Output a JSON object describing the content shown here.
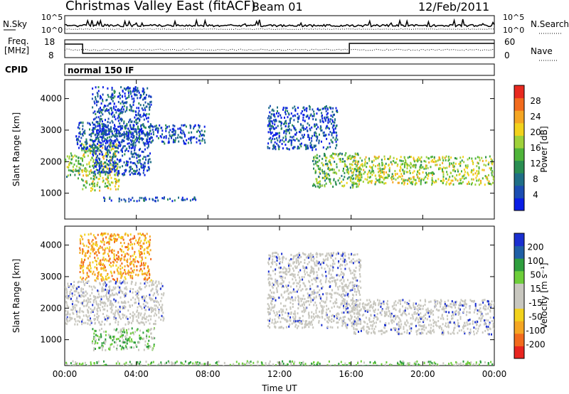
{
  "header": {
    "title": "Christmas Valley East (fitACF)",
    "beam": "Beam 01",
    "date": "12/Feb/2011"
  },
  "noise_panel": {
    "left_label": "N.Sky",
    "right_label": "N.Search",
    "left_ticks": [
      "10^5",
      "10^0"
    ],
    "right_ticks": [
      "10^5",
      "10^0"
    ]
  },
  "freq_panel": {
    "left_label_line1": "Freq.",
    "left_label_line2": "[MHz]",
    "right_label": "Nave",
    "left_ticks": [
      "18",
      "8"
    ],
    "right_ticks": [
      "60",
      "0"
    ]
  },
  "cpid": {
    "label": "CPID",
    "value": "normal 150 IF"
  },
  "colors": {
    "power_scale": [
      "#0a1ee6",
      "#1b4db2",
      "#1f6e86",
      "#2a8e52",
      "#4fb43a",
      "#9fd13a",
      "#f2d21c",
      "#f5a623",
      "#f26b1d",
      "#e8291f"
    ],
    "velocity_scale": [
      "#e8251f",
      "#f26b1d",
      "#f5a623",
      "#f2d21c",
      "#c8c7bf",
      "#c8c7bf",
      "#6dce3a",
      "#2f9e3e",
      "#1f5fa6",
      "#1a2fd0"
    ],
    "ground_scatter": "#c8c7bf"
  },
  "chart_data": [
    {
      "type": "heatmap",
      "name": "power",
      "xlabel": "",
      "ylabel": "Slant Range [km]",
      "xlim": [
        0,
        24
      ],
      "ylim": [
        180,
        4600
      ],
      "yticks": [
        "1000",
        "2000",
        "3000",
        "4000"
      ],
      "colorbar": {
        "label": "Power [dB]",
        "ticks": [
          "4",
          "8",
          "12",
          "16",
          "20",
          "24",
          "28"
        ]
      },
      "features": [
        {
          "x": [
            0.0,
            0.9
          ],
          "range": [
            1500,
            2300
          ],
          "level": 16
        },
        {
          "x": [
            0.9,
            3.0
          ],
          "range": [
            1100,
            2600
          ],
          "level": 20
        },
        {
          "x": [
            0.6,
            2.6
          ],
          "range": [
            2400,
            3300
          ],
          "level": 8
        },
        {
          "x": [
            1.5,
            4.8
          ],
          "range": [
            1600,
            4400
          ],
          "level": 8
        },
        {
          "x": [
            2.0,
            7.8
          ],
          "range": [
            2600,
            3200
          ],
          "level": 8
        },
        {
          "x": [
            2.0,
            7.5
          ],
          "range": [
            770,
            900
          ],
          "level": 8
        },
        {
          "x": [
            11.3,
            15.2
          ],
          "range": [
            2400,
            3800
          ],
          "level": 8
        },
        {
          "x": [
            13.8,
            16.5
          ],
          "range": [
            1200,
            2300
          ],
          "level": 16
        },
        {
          "x": [
            15.9,
            24.0
          ],
          "range": [
            1300,
            2200
          ],
          "level": 20
        }
      ]
    },
    {
      "type": "heatmap",
      "name": "velocity",
      "xlabel": "Time UT",
      "ylabel": "Slant Range [km]",
      "xlim": [
        0,
        24
      ],
      "ylim": [
        180,
        4600
      ],
      "xticks": [
        "00:00",
        "04:00",
        "08:00",
        "12:00",
        "16:00",
        "20:00",
        "00:00"
      ],
      "yticks": [
        "1000",
        "2000",
        "3000",
        "4000"
      ],
      "colorbar": {
        "label": "Velocity [m s⁻¹]",
        "ticks": [
          "200",
          "100",
          "50",
          "15",
          "-15",
          "-50",
          "-100",
          "-200"
        ]
      },
      "features": [
        {
          "x": [
            0.0,
            5.5
          ],
          "range": [
            1500,
            2900
          ],
          "level": 0
        },
        {
          "x": [
            0.8,
            4.8
          ],
          "range": [
            2900,
            4400
          ],
          "level": -50
        },
        {
          "x": [
            1.5,
            5.0
          ],
          "range": [
            700,
            1400
          ],
          "level": 50
        },
        {
          "x": [
            11.3,
            16.5
          ],
          "range": [
            1400,
            3800
          ],
          "level": 0
        },
        {
          "x": [
            15.9,
            24.0
          ],
          "range": [
            1200,
            2300
          ],
          "level": 0
        },
        {
          "x": [
            0.0,
            24.0
          ],
          "range": [
            180,
            350
          ],
          "level": 50
        }
      ]
    }
  ]
}
